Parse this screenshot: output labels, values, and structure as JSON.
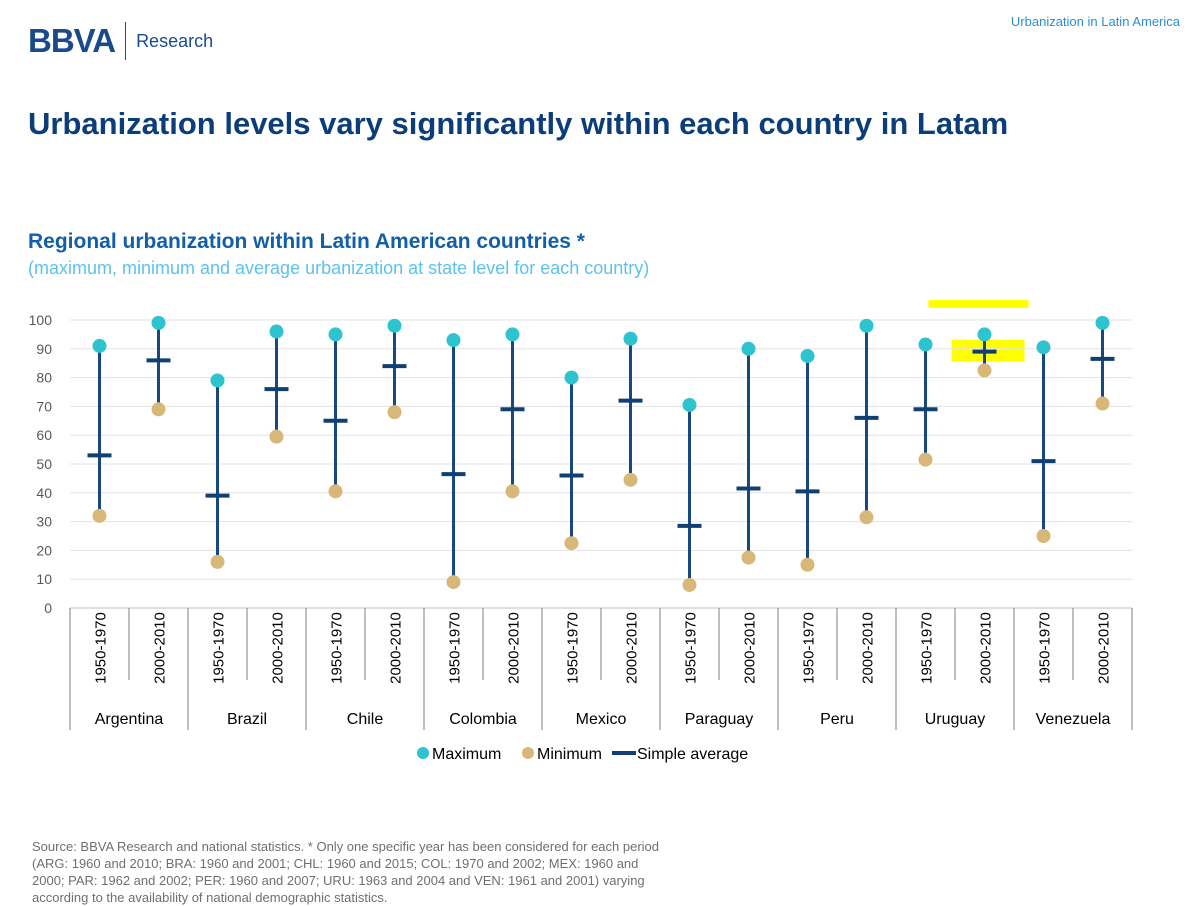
{
  "header": {
    "logo_mark": "BBVA",
    "logo_text": "Research",
    "top_tag": "Urbanization in Latin America"
  },
  "slide_title": "Urbanization levels vary significantly within each country in Latam",
  "chart_title": "Regional urbanization within Latin American countries *",
  "chart_subtitle": "(maximum, minimum and average urbanization at state level for each country)",
  "source": "Source: BBVA Research and  national statistics. * Only one specific year has been considered for each period (ARG: 1960 and 2010; BRA: 1960 and 2001; CHL: 1960 and 2015; COL: 1970 and 2002; MEX: 1960 and 2000; PAR: 1962 and 2002; PER: 1960 and 2007; URU: 1963 and 2004 and VEN: 1961 and 2001) varying according to the availability of national demographic statistics.",
  "colors": {
    "maximum": "#2ec4cf",
    "minimum": "#d8b878",
    "average": "#0f3f73",
    "whisker": "#17487f",
    "highlight": "#ffff00",
    "grid": "#e3e3e3"
  },
  "chart_data": {
    "type": "range",
    "ylim": [
      0,
      100
    ],
    "yticks": [
      0,
      10,
      20,
      30,
      40,
      50,
      60,
      70,
      80,
      90,
      100
    ],
    "grid": true,
    "legend_position": "bottom-center",
    "groups": [
      "Argentina",
      "Brazil",
      "Chile",
      "Colombia",
      "Mexico",
      "Paraguay",
      "Peru",
      "Uruguay",
      "Venezuela"
    ],
    "periods": [
      "1950-1970",
      "2000-2010"
    ],
    "series": [
      {
        "name": "Maximum",
        "values": [
          91,
          99,
          79,
          96,
          95,
          98,
          93,
          95,
          80,
          93.5,
          70.5,
          90,
          87.5,
          98,
          91.5,
          95,
          90.5,
          99
        ]
      },
      {
        "name": "Minimum",
        "values": [
          32,
          69,
          16,
          59.5,
          40.5,
          68,
          9,
          40.5,
          22.5,
          44.5,
          8,
          17.5,
          15,
          31.5,
          51.5,
          82.5,
          25,
          71
        ]
      },
      {
        "name": "Simple average",
        "values": [
          53,
          86,
          39,
          76,
          65,
          84,
          46.5,
          69,
          46,
          72,
          28.5,
          41.5,
          40.5,
          66,
          69,
          89,
          51,
          86.5
        ]
      }
    ],
    "highlighted_index": 15
  }
}
